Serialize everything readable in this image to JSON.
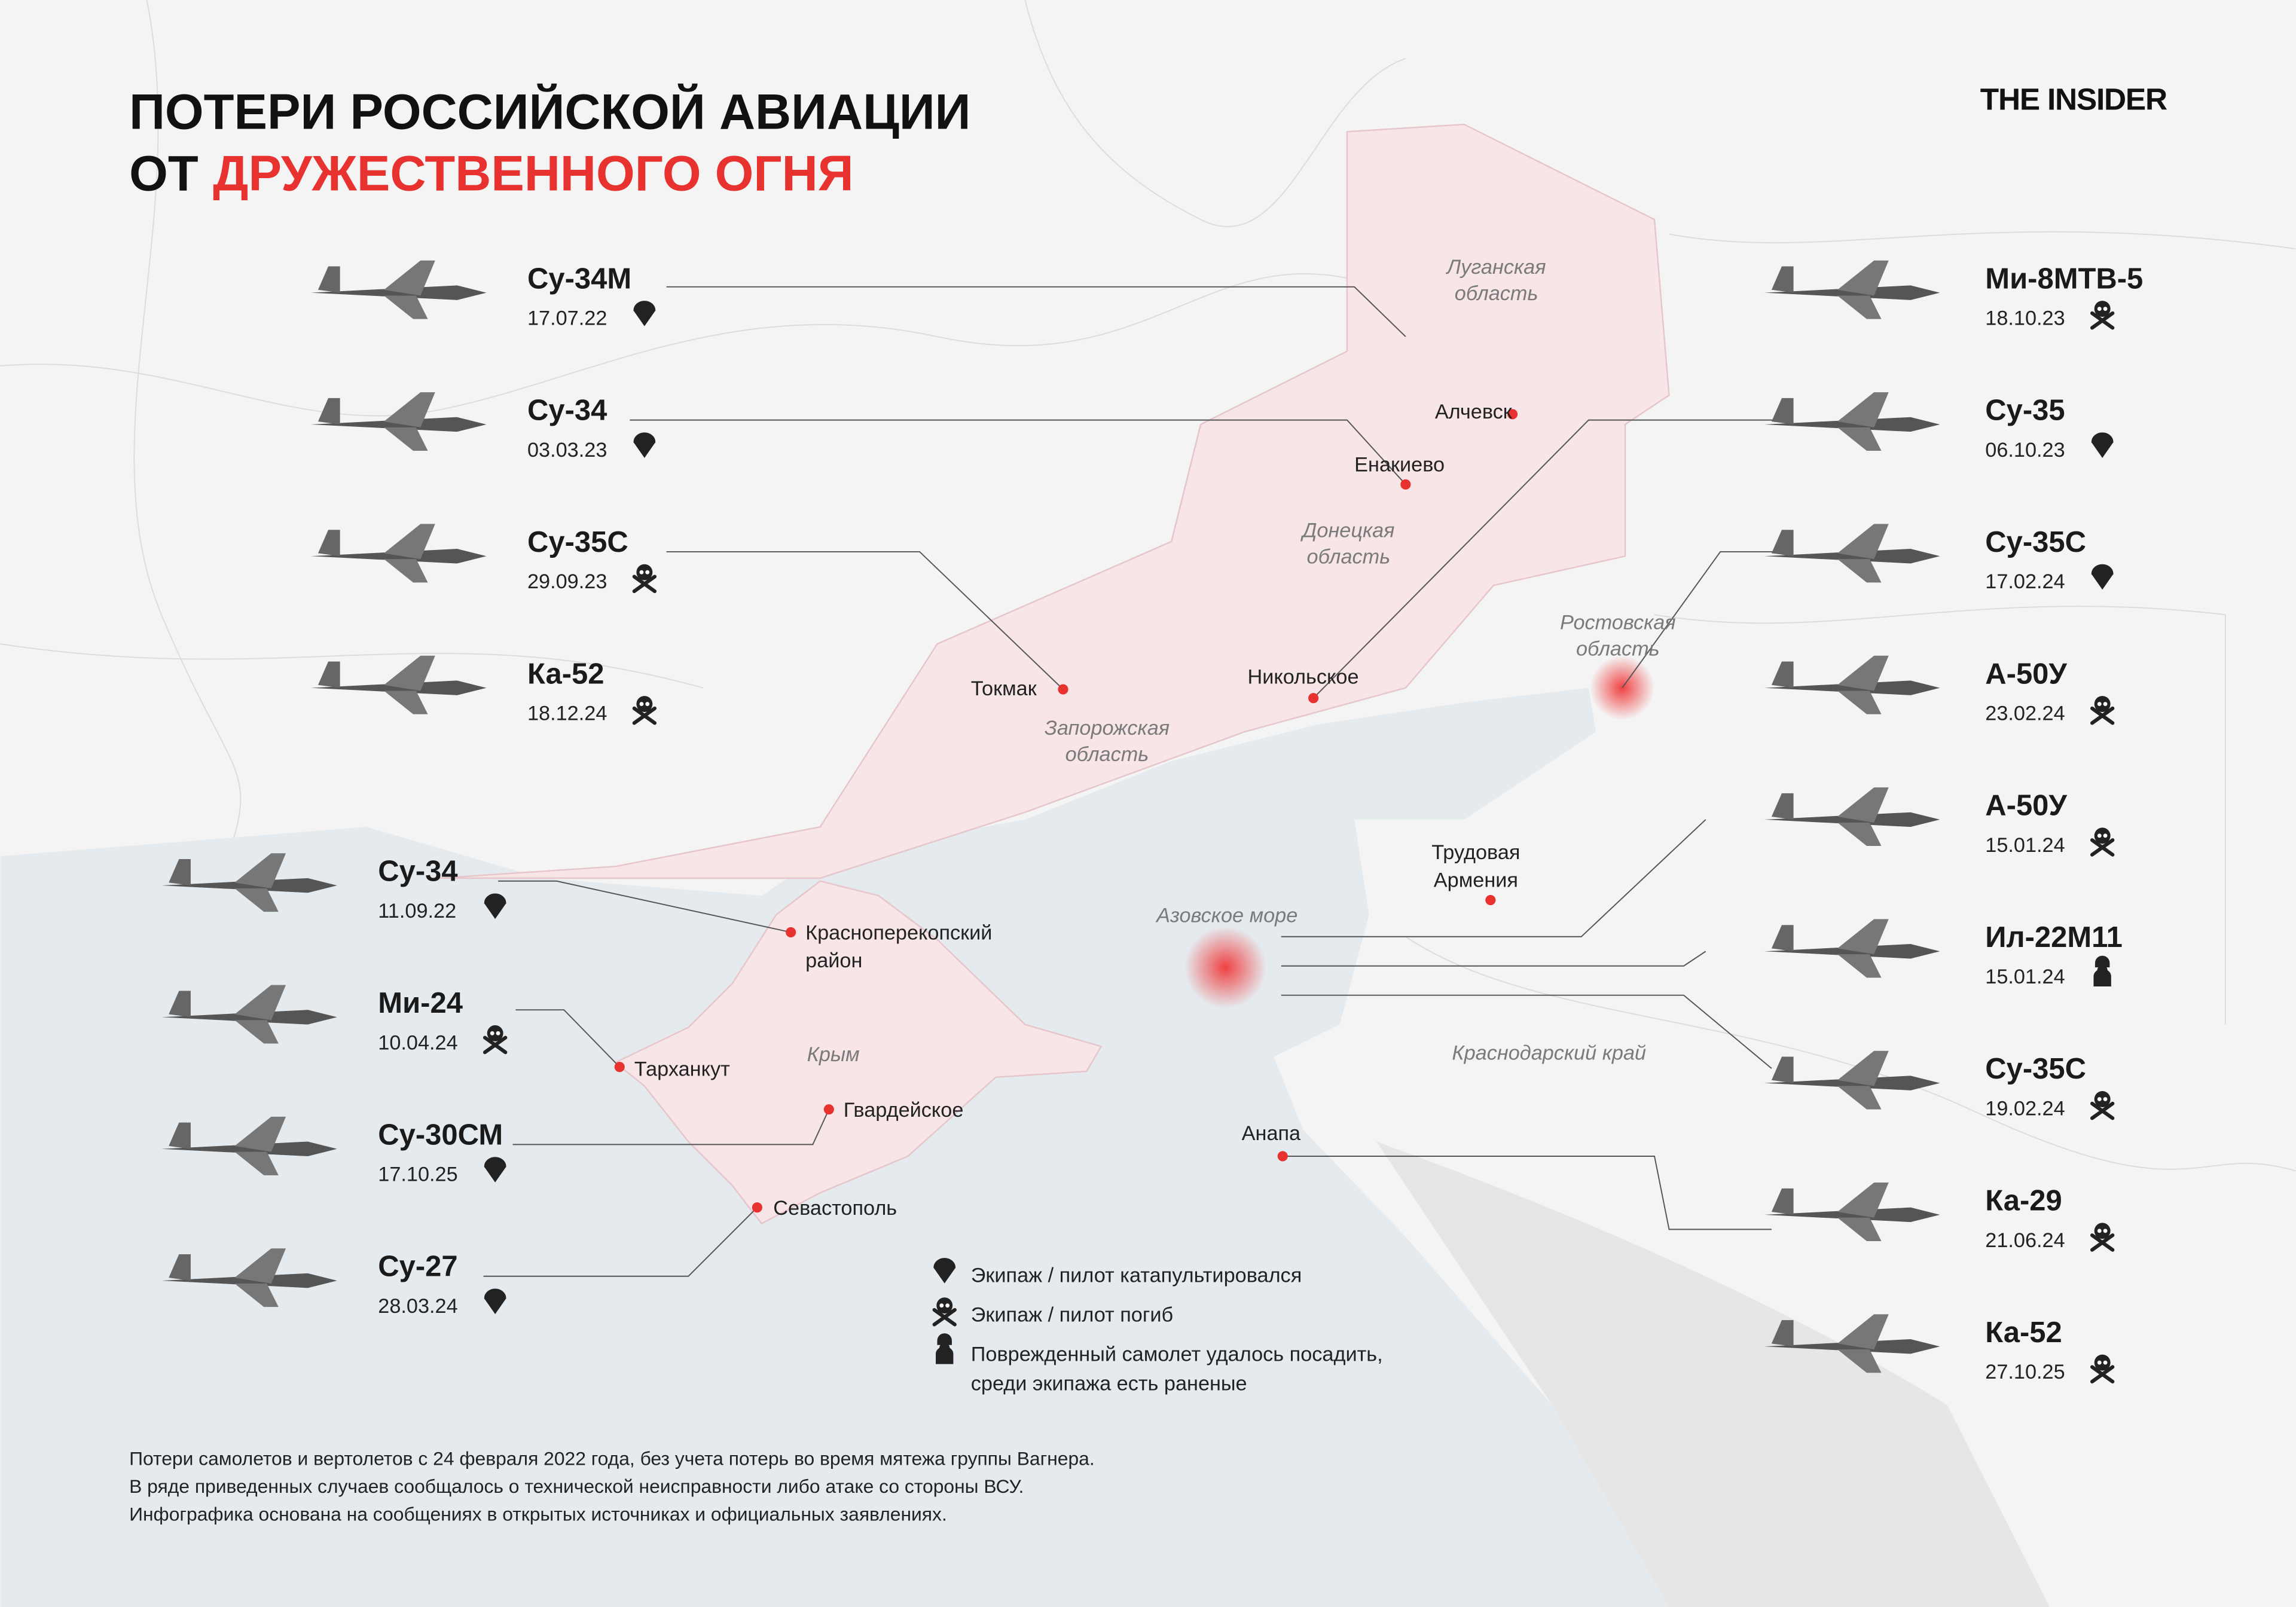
{
  "header": {
    "title_line1": "ПОТЕРИ РОССИЙСКОЙ АВИАЦИИ",
    "title_line2_prefix": "ОТ",
    "title_line2_highlight": "ДРУЖЕСТВЕННОГО ОГНЯ",
    "brand": "THE INSIDER"
  },
  "left_column": [
    {
      "name": "Су-34М",
      "date": "17.07.22",
      "outcome": 0
    },
    {
      "name": "Су-34",
      "date": "03.03.23",
      "outcome": 0
    },
    {
      "name": "Су-35С",
      "date": "29.09.23",
      "outcome": 1
    },
    {
      "name": "Ка-52",
      "date": "18.12.24",
      "outcome": 1
    },
    {
      "name": "Су-34",
      "date": "11.09.22",
      "outcome": 0
    },
    {
      "name": "Ми-24",
      "date": "10.04.24",
      "outcome": 1
    },
    {
      "name": "Су-30СМ",
      "date": "17.10.25",
      "outcome": 0
    },
    {
      "name": "Су-27",
      "date": "28.03.24",
      "outcome": 0
    }
  ],
  "right_column": [
    {
      "name": "Ми-8МТВ-5",
      "date": "18.10.23",
      "outcome": 1
    },
    {
      "name": "Су-35",
      "date": "06.10.23",
      "outcome": 0
    },
    {
      "name": "Су-35С",
      "date": "17.02.24",
      "outcome": 0
    },
    {
      "name": "А-50У",
      "date": "23.02.24",
      "outcome": 1
    },
    {
      "name": "А-50У",
      "date": "15.01.24",
      "outcome": 1
    },
    {
      "name": "Ил-22М11",
      "date": "15.01.24",
      "outcome": 2
    },
    {
      "name": "Су-35С",
      "date": "19.02.24",
      "outcome": 1
    },
    {
      "name": "Ка-29",
      "date": "21.06.24",
      "outcome": 1
    },
    {
      "name": "Ка-52",
      "date": "27.10.25",
      "outcome": 1
    }
  ],
  "places": [
    {
      "lines": [
        "Алчевск"
      ]
    },
    {
      "lines": [
        "Енакиево"
      ]
    },
    {
      "lines": [
        "Никольское"
      ]
    },
    {
      "lines": [
        "Токмак"
      ]
    },
    {
      "lines": [
        "Красноперекопский",
        "район"
      ]
    },
    {
      "lines": [
        "Тарханкут"
      ]
    },
    {
      "lines": [
        "Гвардейское"
      ]
    },
    {
      "lines": [
        "Севастополь"
      ]
    },
    {
      "lines": [
        "Анапа"
      ]
    },
    {
      "lines": [
        "Трудовая",
        "Армения"
      ]
    }
  ],
  "regions": [
    {
      "lines": [
        "Луганская",
        "область"
      ]
    },
    {
      "lines": [
        "Донецкая",
        "область"
      ]
    },
    {
      "lines": [
        "Запорожская",
        "область"
      ]
    },
    {
      "lines": [
        "Ростовская",
        "область"
      ]
    },
    {
      "lines": [
        "Азовское море"
      ]
    },
    {
      "lines": [
        "Крым"
      ]
    },
    {
      "lines": [
        "Краснодарский край"
      ]
    }
  ],
  "legend": {
    "items": [
      {
        "lines": [
          "Экипаж / пилот катапультировался"
        ]
      },
      {
        "lines": [
          "Экипаж / пилот погиб"
        ]
      },
      {
        "lines": [
          "Поврежденный самолет удалось посадить,",
          "среди экипажа есть раненые"
        ]
      }
    ]
  },
  "footnote": [
    "Потери самолетов и вертолетов с 24 февраля 2022 года, без учета потерь во время мятежа группы Вагнера.",
    "В ряде приведенных случаев сообщалось о технической неисправности либо атаке со стороны ВСУ.",
    "Инфографика основана на сообщениях в открытых источниках и официальных заявлениях."
  ]
}
